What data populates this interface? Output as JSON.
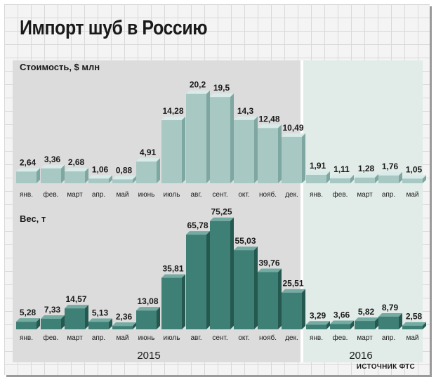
{
  "title": "Импорт шуб в Россию",
  "source": "ИСТОЧНИК ФТС",
  "years": [
    "2015",
    "2016"
  ],
  "colors": {
    "cost_bar": "#a8c8c4",
    "cost_top": "#d8ebe8",
    "cost_side": "#7fa7a2",
    "weight_bar": "#3e8076",
    "weight_top": "#74aba2",
    "weight_side": "#25594f",
    "panel_2015": "#dcdcdc",
    "panel_2016": "#e1ece8"
  },
  "chart_data": [
    {
      "type": "bar",
      "id": "cost",
      "ylabel": "Стоимость, $ млн",
      "categories": [
        "янв.",
        "фев.",
        "март",
        "апр.",
        "май",
        "июнь",
        "июль",
        "авг.",
        "сент.",
        "окт.",
        "нояб.",
        "дек.",
        "янв.",
        "фев.",
        "март",
        "апр.",
        "май"
      ],
      "values": [
        2.64,
        3.36,
        2.68,
        1.06,
        0.88,
        4.91,
        14.28,
        20.2,
        19.5,
        14.3,
        12.48,
        10.49,
        1.91,
        1.11,
        1.28,
        1.76,
        1.05
      ],
      "value_labels": [
        "2,64",
        "3,36",
        "2,68",
        "1,06",
        "0,88",
        "4,91",
        "14,28",
        "20,2",
        "19,5",
        "14,3",
        "12,48",
        "10,49",
        "1,91",
        "1,11",
        "1,28",
        "1,76",
        "1,05"
      ],
      "year_groups": [
        {
          "year": "2015",
          "count": 12
        },
        {
          "year": "2016",
          "count": 5
        }
      ]
    },
    {
      "type": "bar",
      "id": "weight",
      "ylabel": "Вес, т",
      "categories": [
        "янв.",
        "фев.",
        "март",
        "апр.",
        "май",
        "июнь",
        "июль",
        "авг.",
        "сент.",
        "окт.",
        "нояб.",
        "дек.",
        "янв.",
        "фев.",
        "март",
        "апр.",
        "май"
      ],
      "values": [
        5.28,
        7.33,
        14.57,
        5.13,
        2.36,
        13.08,
        35.81,
        65.78,
        75.25,
        55.03,
        39.76,
        25.51,
        3.29,
        3.66,
        5.82,
        8.79,
        2.58
      ],
      "value_labels": [
        "5,28",
        "7,33",
        "14,57",
        "5,13",
        "2,36",
        "13,08",
        "35,81",
        "65,78",
        "75,25",
        "55,03",
        "39,76",
        "25,51",
        "3,29",
        "3,66",
        "5,82",
        "8,79",
        "2,58"
      ],
      "year_groups": [
        {
          "year": "2015",
          "count": 12
        },
        {
          "year": "2016",
          "count": 5
        }
      ]
    }
  ]
}
